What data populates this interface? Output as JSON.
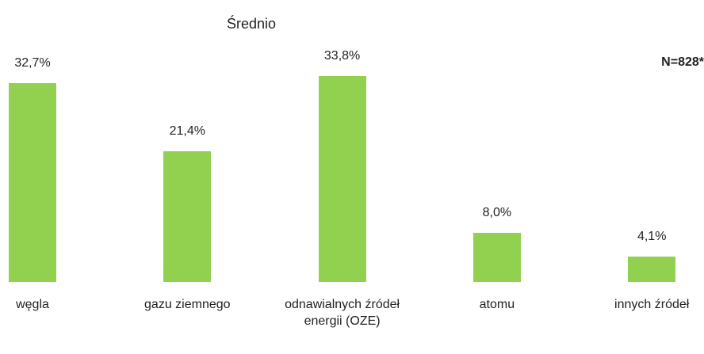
{
  "chart_data": {
    "type": "bar",
    "title": "Średnio",
    "annotation": "N=828*",
    "categories": [
      "węgla",
      "gazu ziemnego",
      "odnawialnych źródeł energii (OZE)",
      "atomu",
      "innych źródeł"
    ],
    "values": [
      32.7,
      21.4,
      33.8,
      8.0,
      4.1
    ],
    "value_labels": [
      "32,7%",
      "21,4%",
      "33,8%",
      "8,0%",
      "4,1%"
    ],
    "color": "#92d050"
  }
}
